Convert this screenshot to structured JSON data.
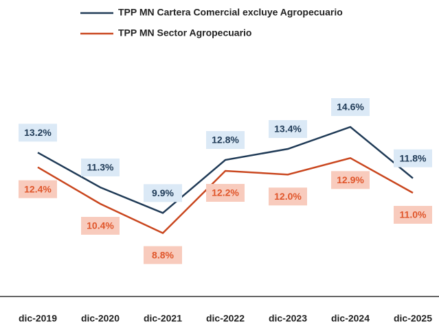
{
  "chart_data": {
    "type": "line",
    "categories": [
      "dic-2019",
      "dic-2020",
      "dic-2021",
      "dic-2022",
      "dic-2023",
      "dic-2024",
      "dic-2025"
    ],
    "series": [
      {
        "name": "TPP MN Cartera Comercial excluye Agropecuario",
        "color": "#1f3a56",
        "values": [
          13.2,
          11.3,
          9.9,
          12.8,
          13.4,
          14.6,
          11.8
        ],
        "value_labels": [
          "13.2%",
          "11.3%",
          "9.9%",
          "12.8%",
          "13.4%",
          "14.6%",
          "11.8%"
        ]
      },
      {
        "name": "TPP MN Sector Agropecuario",
        "color": "#c9461e",
        "values": [
          12.4,
          10.4,
          8.8,
          12.2,
          12.0,
          12.9,
          11.0
        ],
        "value_labels": [
          "12.4%",
          "10.4%",
          "8.8%",
          "12.2%",
          "12.0%",
          "12.9%",
          "11.0%"
        ]
      }
    ],
    "ylim": [
      5,
      20
    ]
  }
}
